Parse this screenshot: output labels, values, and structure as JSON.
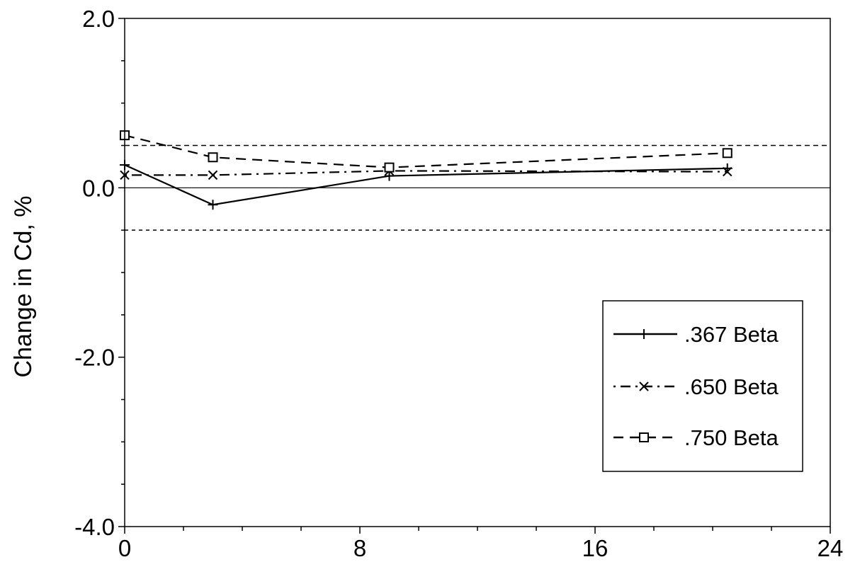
{
  "chart_data": {
    "type": "line",
    "title": "",
    "xlabel": "",
    "ylabel": "Change in Cd, %",
    "xlim": [
      0,
      24
    ],
    "ylim": [
      -4.0,
      2.0
    ],
    "x_ticks": [
      "0",
      "8",
      "16",
      "24"
    ],
    "x_tick_values": [
      0,
      8,
      16,
      24
    ],
    "y_ticks": [
      "2.0",
      "0.0",
      "-2.0",
      "-4.0"
    ],
    "y_tick_values": [
      2.0,
      0.0,
      -2.0,
      -4.0
    ],
    "grid": false,
    "legend_position": "bottom-right",
    "reference_lines": [
      {
        "y": 0.5,
        "style": "dashed"
      },
      {
        "y": 0.0,
        "style": "solid"
      },
      {
        "y": -0.5,
        "style": "dashed"
      }
    ],
    "series": [
      {
        "name": ".367 Beta",
        "marker": "plus",
        "line": "solid",
        "x": [
          0,
          3,
          9,
          20.5
        ],
        "y": [
          0.27,
          -0.2,
          0.14,
          0.23
        ]
      },
      {
        "name": ".650 Beta",
        "marker": "x",
        "line": "dash-dot",
        "x": [
          0,
          3,
          9,
          20.5
        ],
        "y": [
          0.15,
          0.15,
          0.2,
          0.19
        ]
      },
      {
        "name": ".750 Beta",
        "marker": "square",
        "line": "dashed",
        "x": [
          0,
          3,
          9,
          20.5
        ],
        "y": [
          0.62,
          0.36,
          0.24,
          0.41
        ]
      }
    ]
  }
}
